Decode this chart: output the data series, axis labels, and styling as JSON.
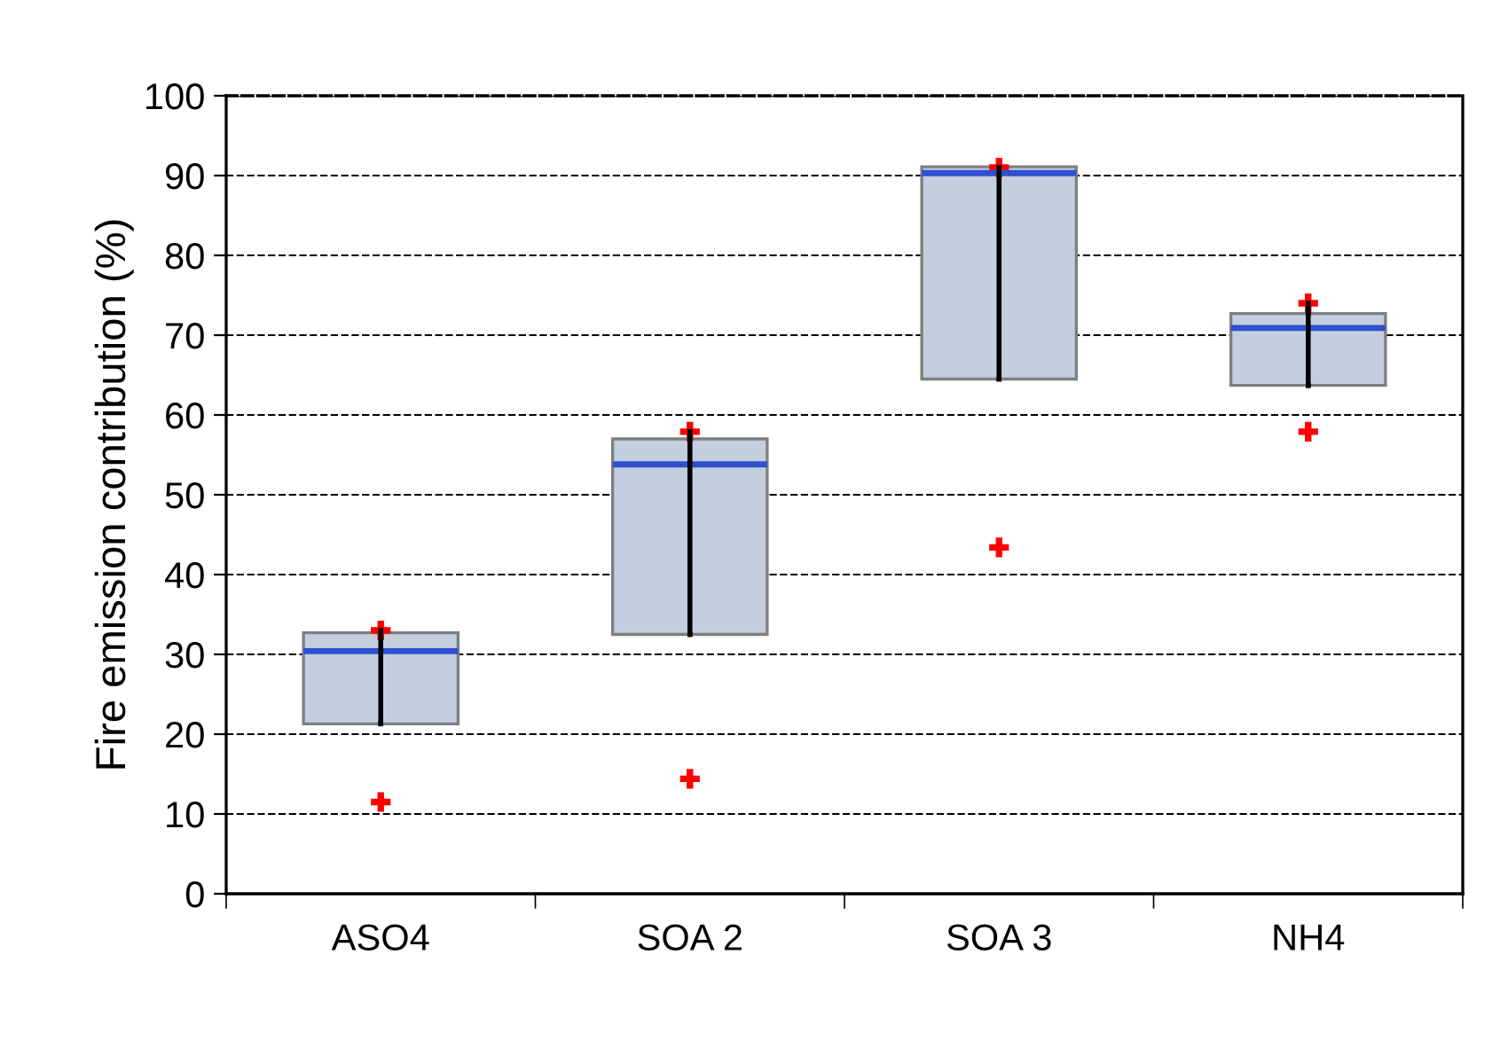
{
  "chart_data": {
    "type": "box",
    "ylabel": "Fire emission contribution (%)",
    "categories": [
      "ASO4",
      "SOA 2",
      "SOA 3",
      "NH4"
    ],
    "boxes": [
      {
        "low": 21.3,
        "q1": 21.3,
        "median": 30.4,
        "q3": 32.7,
        "high": 33.0,
        "outliers": [
          33.0,
          11.5
        ]
      },
      {
        "low": 32.5,
        "q1": 32.5,
        "median": 53.8,
        "q3": 57.0,
        "high": 57.9,
        "outliers": [
          57.9,
          14.4
        ]
      },
      {
        "low": 64.5,
        "q1": 64.5,
        "median": 90.3,
        "q3": 91.1,
        "high": 91.0,
        "outliers": [
          91.0,
          43.4
        ]
      },
      {
        "low": 63.7,
        "q1": 63.7,
        "median": 70.9,
        "q3": 72.7,
        "high": 74.0,
        "outliers": [
          74.0,
          57.9
        ]
      }
    ],
    "color": "#c3cfdf",
    "ylim": [
      0,
      100
    ],
    "yticks": [
      0,
      10,
      20,
      30,
      40,
      50,
      60,
      70,
      80,
      90,
      100
    ],
    "grid": "y",
    "marker": "cross"
  }
}
